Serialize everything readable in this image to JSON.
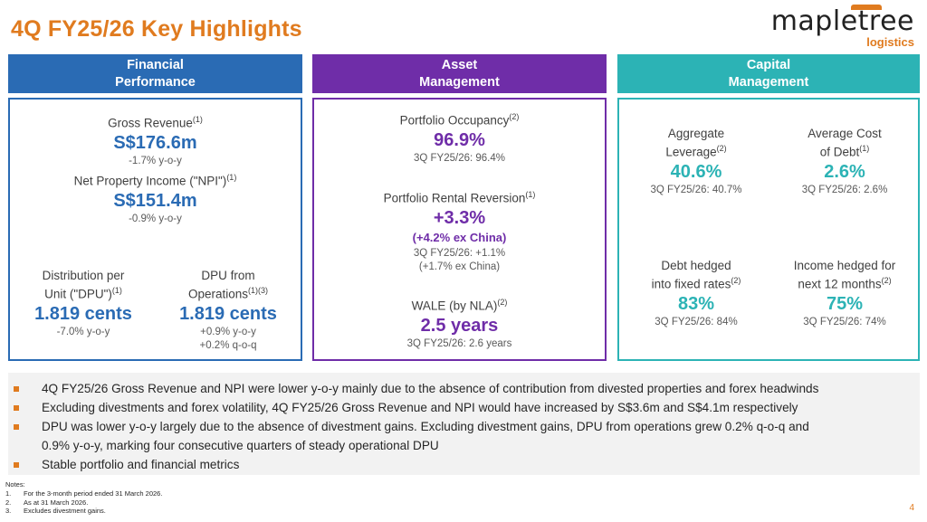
{
  "title": "4Q FY25/26 Key Highlights",
  "logo": {
    "main": "mapletree",
    "sub": "logistics"
  },
  "colors": {
    "accent": "#e07b1f",
    "blue": "#2a6bb4",
    "purple": "#6f2da8",
    "teal": "#2cb3b5"
  },
  "financial": {
    "header": "Financial\nPerformance",
    "gross_revenue": {
      "label": "Gross Revenue",
      "sup": "(1)",
      "value": "S$176.6m",
      "sub": "-1.7% y-o-y"
    },
    "npi": {
      "label": "Net Property Income (\"NPI\")",
      "sup": "(1)",
      "value": "S$151.4m",
      "sub": "-0.9% y-o-y"
    },
    "dpu": {
      "label_line1": "Distribution per",
      "label_line2": "Unit (\"DPU\")",
      "sup": "(1)",
      "value": "1.819 cents",
      "sub": "-7.0% y-o-y"
    },
    "dpu_ops": {
      "label_line1": "DPU from",
      "label_line2": "Operations",
      "sup": "(1)(3)",
      "value": "1.819 cents",
      "sub": "+0.9% y-o-y\n+0.2% q-o-q"
    }
  },
  "asset": {
    "header": "Asset\nManagement",
    "occupancy": {
      "label": "Portfolio Occupancy",
      "sup": "(2)",
      "value": "96.9%",
      "sub": "3Q FY25/26: 96.4%"
    },
    "reversion": {
      "label": "Portfolio Rental Reversion",
      "sup": "(1)",
      "value": "+3.3%",
      "value2": "(+4.2% ex China)",
      "sub": "3Q FY25/26: +1.1%\n(+1.7% ex China)"
    },
    "wale": {
      "label": "WALE (by NLA)",
      "sup": "(2)",
      "value": "2.5 years",
      "sub": "3Q FY25/26: 2.6 years"
    }
  },
  "capital": {
    "header": "Capital\nManagement",
    "leverage": {
      "label_line1": "Aggregate",
      "label_line2": "Leverage",
      "sup": "(2)",
      "value": "40.6%",
      "sub": "3Q FY25/26: 40.7%"
    },
    "cost_of_debt": {
      "label_line1": "Average Cost",
      "label_line2": "of Debt",
      "sup": "(1)",
      "value": "2.6%",
      "sub": "3Q FY25/26: 2.6%"
    },
    "debt_hedged": {
      "label_line1": "Debt hedged",
      "label_line2": "into fixed rates",
      "sup": "(2)",
      "value": "83%",
      "sub": "3Q FY25/26: 84%"
    },
    "income_hedged": {
      "label_line1": "Income hedged for",
      "label_line2": "next 12 months",
      "sup": "(2)",
      "value": "75%",
      "sub": "3Q FY25/26: 74%"
    }
  },
  "bullets": [
    "4Q FY25/26 Gross Revenue and NPI were lower y-o-y mainly due to the absence of contribution from divested properties and forex headwinds",
    "Excluding divestments and forex volatility, 4Q FY25/26 Gross Revenue and NPI would have increased by S$3.6m and S$4.1m respectively",
    "DPU was lower y-o-y largely due to the absence of divestment gains. Excluding divestment gains, DPU from operations grew 0.2% q-o-q and",
    "0.9% y-o-y, marking four consecutive quarters of steady operational DPU",
    "Stable portfolio and financial metrics"
  ],
  "notes": {
    "heading": "Notes:",
    "items": [
      {
        "num": "1.",
        "text": "For the 3-month period ended 31 March 2026."
      },
      {
        "num": "2.",
        "text": "As at 31 March 2026."
      },
      {
        "num": "3.",
        "text": "Excludes divestment gains."
      }
    ]
  },
  "page_number": "4"
}
